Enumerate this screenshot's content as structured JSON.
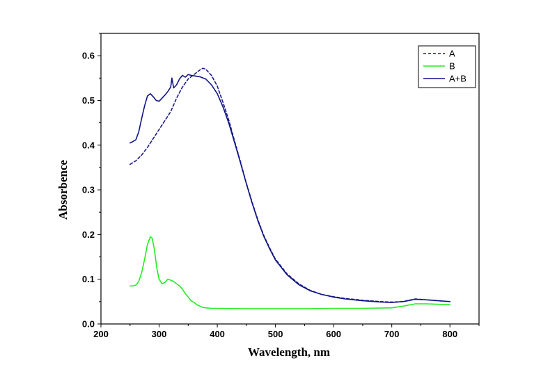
{
  "chart_data": {
    "type": "line",
    "title": "",
    "xlabel": "Wavelength, nm",
    "ylabel": "Absorbence",
    "xlim": [
      200,
      850
    ],
    "ylim": [
      0.0,
      0.65
    ],
    "xticks": [
      200,
      300,
      400,
      500,
      600,
      700,
      800
    ],
    "yticks": [
      0.0,
      0.1,
      0.2,
      0.3,
      0.4,
      0.5,
      0.6
    ],
    "xtick_labels": [
      "200",
      "300",
      "400",
      "500",
      "600",
      "700",
      "800"
    ],
    "ytick_labels": [
      "0.0",
      "0.1",
      "0.2",
      "0.3",
      "0.4",
      "0.5",
      "0.6"
    ],
    "grid": false,
    "legend_position": "top-right",
    "series": [
      {
        "name": "A",
        "color": "#1a1a8c",
        "style": "dashed",
        "x": [
          250,
          260,
          270,
          280,
          290,
          300,
          310,
          320,
          330,
          340,
          350,
          360,
          370,
          375,
          380,
          390,
          400,
          410,
          420,
          430,
          440,
          450,
          460,
          470,
          480,
          490,
          500,
          520,
          540,
          560,
          580,
          600,
          620,
          650,
          680,
          700,
          720,
          740,
          760,
          780,
          800
        ],
        "y": [
          0.357,
          0.365,
          0.378,
          0.395,
          0.415,
          0.435,
          0.455,
          0.475,
          0.505,
          0.53,
          0.548,
          0.558,
          0.568,
          0.572,
          0.57,
          0.556,
          0.532,
          0.495,
          0.455,
          0.408,
          0.362,
          0.315,
          0.272,
          0.232,
          0.198,
          0.17,
          0.145,
          0.112,
          0.09,
          0.075,
          0.066,
          0.061,
          0.057,
          0.053,
          0.05,
          0.049,
          0.05,
          0.056,
          0.054,
          0.052,
          0.05
        ]
      },
      {
        "name": "B",
        "color": "#22ee22",
        "style": "solid",
        "x": [
          250,
          255,
          260,
          265,
          270,
          275,
          280,
          285,
          288,
          292,
          296,
          300,
          305,
          310,
          315,
          320,
          325,
          330,
          335,
          340,
          345,
          350,
          355,
          360,
          365,
          370,
          375,
          380,
          390,
          400,
          450,
          500,
          550,
          600,
          650,
          700,
          720,
          740,
          760,
          780,
          800
        ],
        "y": [
          0.085,
          0.085,
          0.087,
          0.095,
          0.115,
          0.145,
          0.178,
          0.195,
          0.192,
          0.165,
          0.125,
          0.1,
          0.09,
          0.093,
          0.1,
          0.098,
          0.095,
          0.09,
          0.085,
          0.078,
          0.068,
          0.06,
          0.052,
          0.048,
          0.043,
          0.04,
          0.037,
          0.036,
          0.035,
          0.035,
          0.034,
          0.034,
          0.034,
          0.035,
          0.035,
          0.036,
          0.04,
          0.045,
          0.045,
          0.044,
          0.043
        ]
      },
      {
        "name": "A+B",
        "color": "#0f1585",
        "style": "solid",
        "x": [
          250,
          255,
          260,
          265,
          270,
          275,
          280,
          285,
          290,
          295,
          300,
          305,
          310,
          315,
          320,
          322,
          325,
          330,
          335,
          340,
          345,
          350,
          355,
          360,
          370,
          380,
          390,
          400,
          410,
          420,
          430,
          440,
          450,
          460,
          470,
          480,
          490,
          500,
          520,
          540,
          560,
          580,
          600,
          620,
          650,
          680,
          700,
          720,
          740,
          760,
          780,
          800
        ],
        "y": [
          0.405,
          0.408,
          0.412,
          0.43,
          0.46,
          0.488,
          0.51,
          0.515,
          0.508,
          0.5,
          0.498,
          0.505,
          0.512,
          0.52,
          0.53,
          0.55,
          0.528,
          0.535,
          0.548,
          0.556,
          0.552,
          0.558,
          0.556,
          0.555,
          0.553,
          0.548,
          0.535,
          0.515,
          0.485,
          0.448,
          0.405,
          0.36,
          0.314,
          0.27,
          0.23,
          0.196,
          0.168,
          0.143,
          0.11,
          0.088,
          0.074,
          0.066,
          0.06,
          0.056,
          0.052,
          0.049,
          0.048,
          0.05,
          0.055,
          0.054,
          0.052,
          0.05
        ]
      }
    ]
  }
}
